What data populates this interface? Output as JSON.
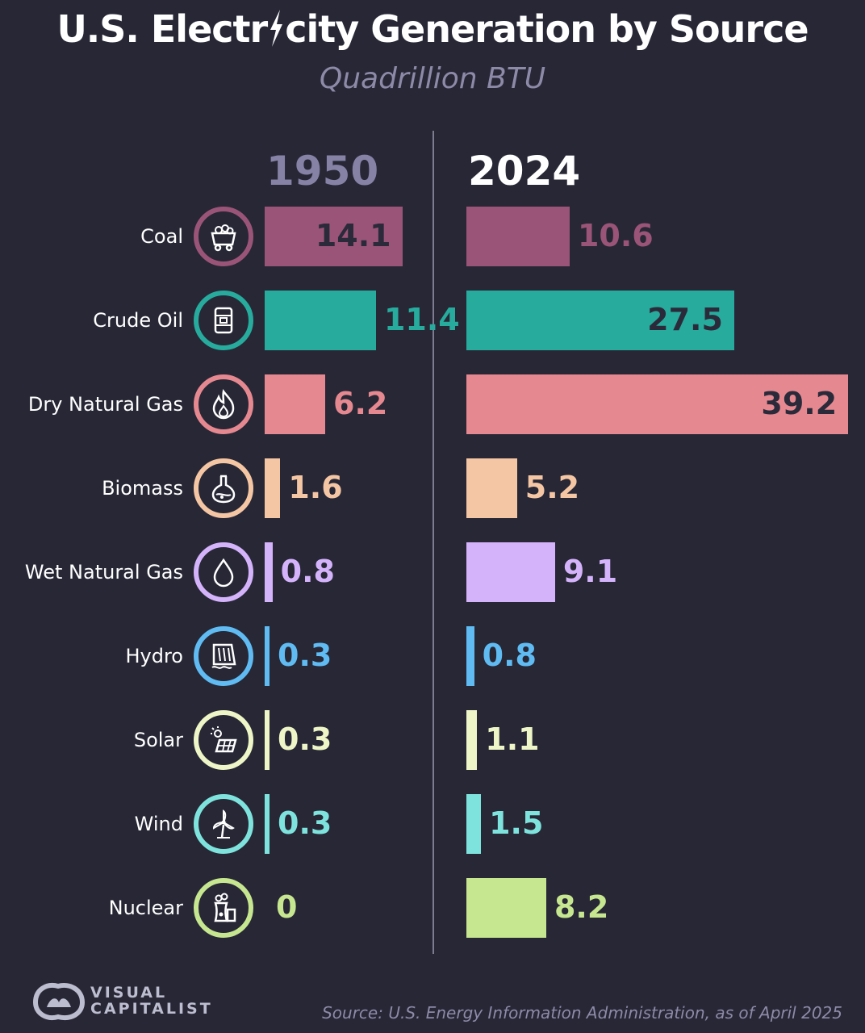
{
  "header": {
    "title_before": "U.S. Electr",
    "title_after": "city Generation by Source",
    "subtitle": "Quadrillion BTU"
  },
  "chart_data": {
    "type": "bar",
    "title": "U.S. Electricity Generation by Source",
    "subtitle": "Quadrillion BTU",
    "categories": [
      "Coal",
      "Crude Oil",
      "Dry Natural Gas",
      "Biomass",
      "Wet Natural Gas",
      "Hydro",
      "Solar",
      "Wind",
      "Nuclear"
    ],
    "series": [
      {
        "name": "1950",
        "values": [
          14.1,
          11.4,
          6.2,
          1.6,
          0.8,
          0.3,
          0.3,
          0.3,
          0
        ]
      },
      {
        "name": "2024",
        "values": [
          10.6,
          27.5,
          39.2,
          5.2,
          9.1,
          0.8,
          1.1,
          1.5,
          8.2
        ]
      }
    ],
    "value_labels": {
      "1950": [
        "14.1",
        "11.4",
        "6.2",
        "1.6",
        "0.8",
        "0.3",
        "0.3",
        "0.3",
        "0"
      ],
      "2024": [
        "10.6",
        "27.5",
        "39.2",
        "5.2",
        "9.1",
        "0.8",
        "1.1",
        "1.5",
        "8.2"
      ]
    },
    "colors": [
      "#9a5477",
      "#27ab9d",
      "#e68890",
      "#f5c6a4",
      "#d4b3fb",
      "#5fbbf2",
      "#eef5c6",
      "#7fe3dd",
      "#c6e690"
    ],
    "icons": [
      "mine-cart-icon",
      "oil-barrel-icon",
      "flame-icon",
      "flask-icon",
      "droplet-icon",
      "dam-icon",
      "solar-panel-icon",
      "wind-turbine-icon",
      "nuclear-plant-icon"
    ],
    "orientation": "horizontal",
    "grid": false,
    "legend": "none"
  },
  "footer": {
    "logo_line1": "VISUAL",
    "logo_line2": "CAPITALIST",
    "source": "Source: U.S. Energy Information Administration, as of April 2025"
  }
}
